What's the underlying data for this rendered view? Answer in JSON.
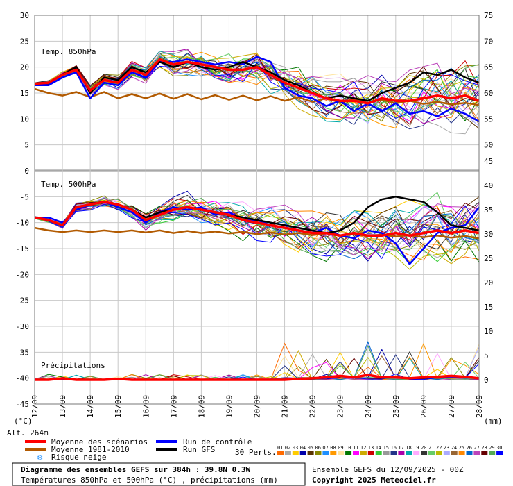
{
  "chart_data": {
    "type": "line",
    "x_dates": [
      "13/09",
      "14/09",
      "15/09",
      "16/09",
      "17/09",
      "18/09",
      "19/09",
      "20/09",
      "21/09",
      "22/09",
      "23/09",
      "24/09",
      "25/09",
      "26/09",
      "27/09",
      "28/09"
    ],
    "x_start_label": "12/09",
    "grid": true,
    "left_axis": {
      "unit": "(°C)",
      "ticks": [
        30,
        25,
        20,
        15,
        10,
        5,
        0,
        -5,
        -10,
        -15,
        -20,
        -25,
        -30,
        -35,
        -40,
        -45
      ]
    },
    "right_axis": {
      "unit": "(mm)",
      "ticks_upper": [
        75,
        70,
        65,
        60,
        55,
        50
      ],
      "ticks_lower": [
        45,
        40,
        35,
        30,
        25,
        20,
        15,
        10,
        5,
        0
      ]
    },
    "panels": {
      "t850": {
        "label": "Temp. 850hPa"
      },
      "t500": {
        "label": "Temp. 500hPa"
      },
      "precip": {
        "label": "Précipitations"
      }
    },
    "series": [
      {
        "name": "Moyenne des scénarios",
        "color": "#ff0000",
        "t850": [
          16.8,
          17.0,
          18.5,
          19.5,
          15.5,
          17.5,
          17.0,
          19.5,
          18.5,
          21.5,
          20.5,
          21.0,
          20.5,
          20.0,
          19.5,
          19.5,
          20.0,
          18.5,
          17.0,
          16.0,
          15.0,
          14.0,
          13.5,
          13.5,
          13.0,
          14.0,
          13.5,
          13.5,
          14.0,
          14.5,
          14.0,
          14.5,
          13.5
        ],
        "t500": [
          -9.0,
          -9.5,
          -10.5,
          -7.0,
          -6.5,
          -6.0,
          -6.5,
          -7.5,
          -9.5,
          -8.5,
          -7.5,
          -7.0,
          -7.5,
          -8.0,
          -8.5,
          -9.5,
          -10.0,
          -10.5,
          -11.0,
          -11.5,
          -12.0,
          -12.0,
          -12.5,
          -12.0,
          -12.5,
          -12.5,
          -12.0,
          -12.5,
          -12.0,
          -11.5,
          -12.0,
          -11.5,
          -12.0
        ],
        "precip": [
          0,
          0,
          0.3,
          0,
          0,
          0,
          0.2,
          0,
          0,
          0,
          0,
          0,
          0,
          0,
          0,
          0,
          0,
          0,
          0,
          0.2,
          0.3,
          0.5,
          0.8,
          0.5,
          1.0,
          0.5,
          0.5,
          0.3,
          0.5,
          0.6,
          0.8,
          0.6,
          0.3
        ]
      },
      {
        "name": "Moyenne 1981-2010",
        "color": "#b25a00",
        "t850": [
          15.8,
          15.0,
          14.5,
          15.2,
          14.2,
          15.2,
          14.0,
          14.8,
          14.0,
          14.9,
          13.9,
          14.8,
          13.8,
          14.6,
          13.7,
          14.5,
          13.6,
          14.4,
          13.5,
          14.2,
          13.3,
          14.0,
          13.2,
          13.8,
          13.1,
          13.7,
          13.0,
          13.5,
          12.9,
          13.3,
          12.8,
          13.1,
          12.7
        ],
        "t500": [
          -11.0,
          -11.5,
          -11.8,
          -11.5,
          -11.8,
          -11.5,
          -11.8,
          -11.5,
          -11.9,
          -11.5,
          -12.0,
          -11.6,
          -12.0,
          -11.7,
          -12.1,
          -11.8,
          -12.2,
          -11.9,
          -12.3,
          -12.0,
          -12.4,
          -12.1,
          -12.5,
          -12.2,
          -12.6,
          -12.3,
          -12.7,
          -12.4,
          -12.8,
          -12.5,
          -12.9,
          -12.6,
          -13.0
        ]
      },
      {
        "name": "Run de contrôle",
        "color": "#0000ff",
        "t850": [
          16.5,
          16.5,
          18.0,
          19.0,
          14.0,
          17.0,
          16.5,
          19.0,
          18.0,
          21.0,
          21.0,
          21.5,
          21.0,
          20.5,
          21.0,
          20.5,
          22.0,
          21.0,
          16.0,
          14.5,
          14.0,
          12.5,
          13.5,
          11.5,
          13.0,
          11.5,
          13.0,
          11.0,
          11.5,
          10.5,
          12.0,
          11.0,
          9.5
        ],
        "t500": [
          -9.0,
          -9.0,
          -10.0,
          -7.5,
          -6.5,
          -6.0,
          -7.0,
          -8.0,
          -10.0,
          -8.0,
          -7.0,
          -7.5,
          -7.0,
          -8.5,
          -8.0,
          -9.5,
          -9.5,
          -10.5,
          -11.0,
          -11.5,
          -12.0,
          -11.0,
          -12.5,
          -13.0,
          -11.5,
          -12.0,
          -14.0,
          -18.0,
          -15.0,
          -12.0,
          -11.0,
          -10.5,
          -7.0
        ]
      },
      {
        "name": "Run GFS",
        "color": "#000000",
        "t850": [
          16.8,
          17.0,
          18.5,
          20.0,
          15.0,
          18.0,
          17.5,
          20.0,
          19.0,
          21.0,
          20.0,
          21.0,
          20.0,
          19.5,
          20.0,
          21.0,
          20.0,
          19.0,
          17.5,
          16.5,
          15.0,
          14.0,
          14.5,
          14.0,
          13.5,
          15.0,
          16.0,
          17.0,
          19.0,
          18.5,
          19.5,
          18.0,
          17.0
        ],
        "t500": [
          -9.0,
          -9.5,
          -10.5,
          -7.0,
          -6.5,
          -6.0,
          -6.5,
          -7.5,
          -9.0,
          -8.0,
          -7.5,
          -7.0,
          -7.5,
          -8.0,
          -8.5,
          -9.0,
          -9.5,
          -10.0,
          -10.5,
          -11.0,
          -11.5,
          -12.0,
          -11.5,
          -10.0,
          -7.0,
          -5.5,
          -5.0,
          -5.5,
          -6.0,
          -8.0,
          -10.5,
          -11.0,
          -11.5
        ]
      }
    ],
    "legend": {
      "items": [
        "Moyenne des scénarios",
        "Moyenne 1981-2010",
        "Risque neige",
        "Run de contrôle",
        "Run GFS"
      ],
      "perts_label": "30 Perts.",
      "perts_numbers": [
        "01",
        "02",
        "03",
        "04",
        "05",
        "06",
        "07",
        "08",
        "09",
        "10",
        "11",
        "12",
        "13",
        "14",
        "15",
        "16",
        "17",
        "18",
        "19",
        "20",
        "21",
        "22",
        "23",
        "24",
        "25",
        "26",
        "27",
        "28",
        "29",
        "30"
      ],
      "perts_colors": [
        "#ff6a00",
        "#aaaaaa",
        "#ffcc00",
        "#0000aa",
        "#5a3300",
        "#888800",
        "#1e90ff",
        "#ff9900",
        "#ffe4a0",
        "#007700",
        "#ff00ff",
        "#ccaa00",
        "#cc0000",
        "#33cc33",
        "#999999",
        "#223388",
        "#aa00aa",
        "#00aaaa",
        "#ffaaff",
        "#333333",
        "#66cc66",
        "#bbbb00",
        "#aaaaff",
        "#996633",
        "#ff8800",
        "#0066cc",
        "#bb44bb",
        "#660000",
        "#55aa55",
        "#0000ff"
      ]
    },
    "alt_label": "Alt. 264m",
    "title": "Diagramme des ensembles GEFS sur 384h : 39.8N 0.3W",
    "subtitle": "Températures 850hPa et 500hPa (°C) , précipitations (mm)",
    "run_info": "Ensemble GEFS du 12/09/2025 - 00Z",
    "copyright": "Copyright 2025 Meteociel.fr"
  }
}
